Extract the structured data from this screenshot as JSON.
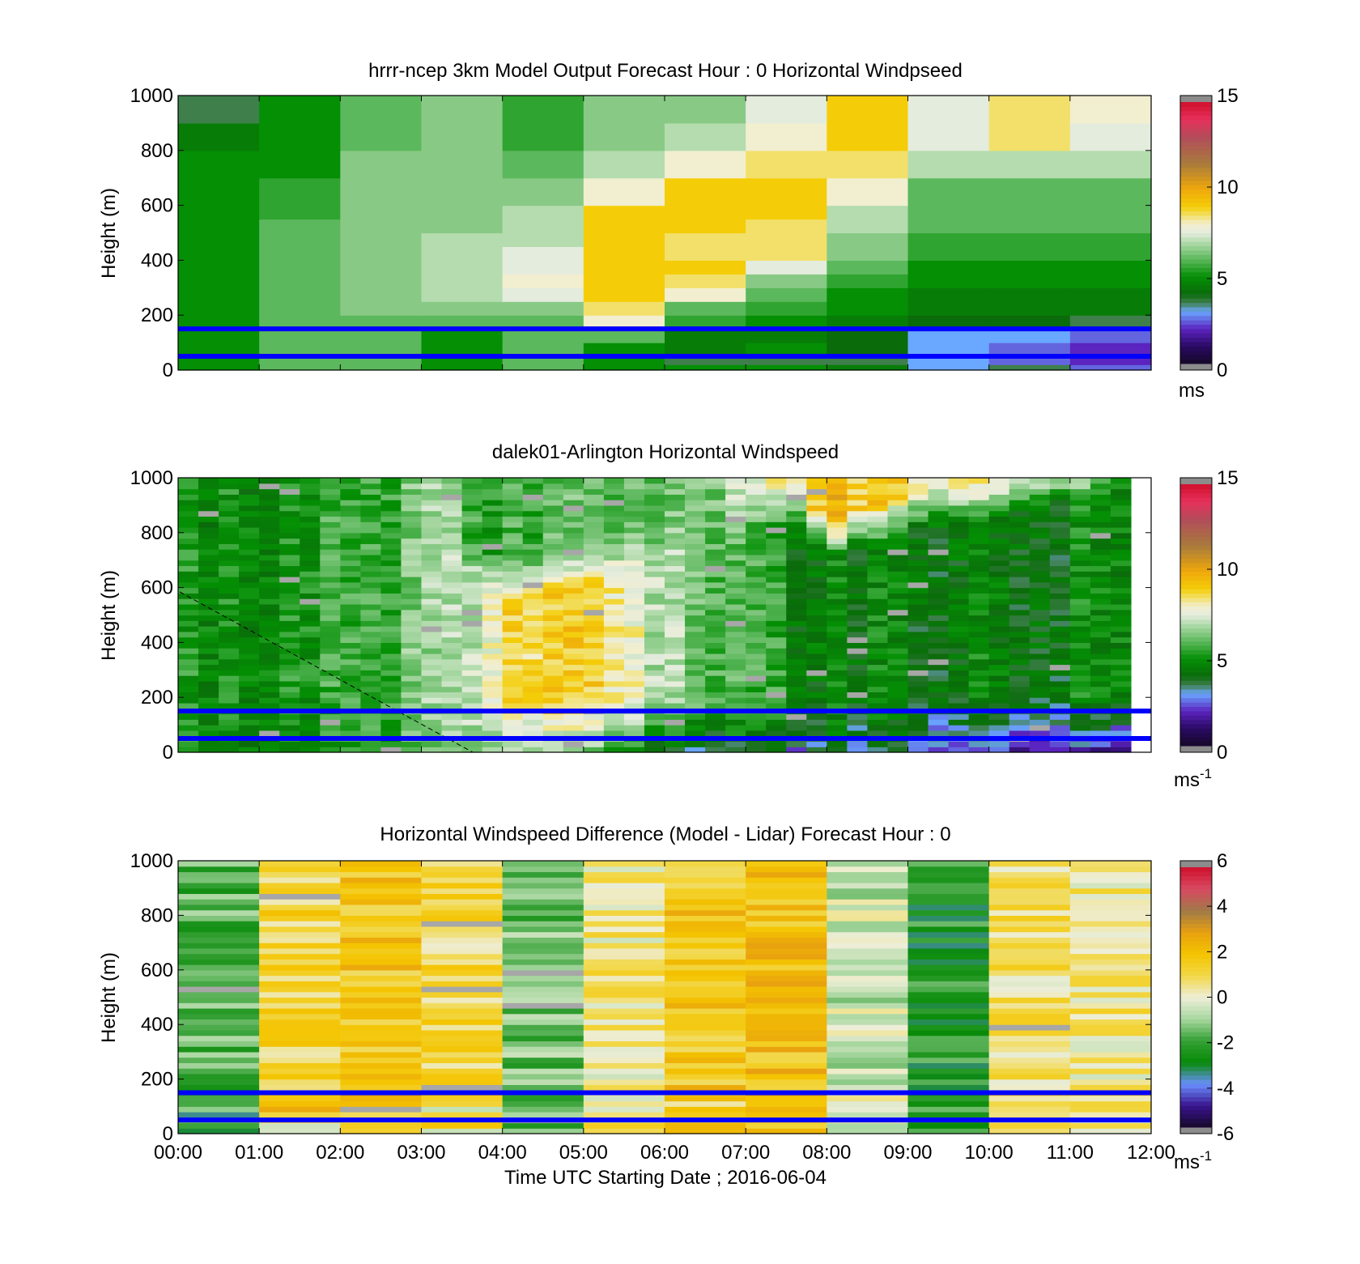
{
  "figure": {
    "background": "#ffffff",
    "reference_line_color": "#0000ff",
    "xlabel": "Time UTC  Starting Date ; 2016-06-04",
    "xticklabels": [
      "00:00",
      "01:00",
      "02:00",
      "03:00",
      "04:00",
      "05:00",
      "06:00",
      "07:00",
      "08:00",
      "09:00",
      "10:00",
      "11:00",
      "12:00"
    ]
  },
  "chart_data": [
    {
      "type": "heatmap",
      "id": "model",
      "title": "hrrr-ncep 3km Model Output   Forecast Hour : 0 Horizontal Windpseed",
      "ylabel": "Height (m)",
      "ylim": [
        0,
        1000
      ],
      "yticks": [
        0,
        200,
        400,
        600,
        800,
        1000
      ],
      "xlim_hours": [
        0,
        12
      ],
      "colorbar": {
        "min": 0,
        "max": 15,
        "ticks": [
          0,
          5,
          10,
          15
        ],
        "unit": "ms",
        "unit_sup": ""
      },
      "reference_heights_m": [
        150,
        50
      ],
      "grid_lines": false,
      "time_hours": [
        0,
        1,
        2,
        3,
        4,
        5,
        6,
        7,
        8,
        9,
        10,
        11
      ],
      "height_bin_tops_m": [
        20,
        60,
        100,
        150,
        200,
        250,
        300,
        350,
        400,
        450,
        500,
        550,
        600,
        700,
        800,
        900,
        1000
      ],
      "values": [
        [
          5,
          6,
          6,
          5,
          6,
          5,
          5,
          5,
          4.5,
          3,
          3.5,
          2.5
        ],
        [
          5,
          6,
          6,
          5,
          6,
          5,
          3.5,
          3.5,
          3.5,
          3,
          2.5,
          2
        ],
        [
          5,
          6,
          6,
          5,
          6,
          5,
          4.5,
          5,
          4,
          3,
          2.5,
          2
        ],
        [
          5,
          6,
          6,
          5,
          6,
          6,
          4.5,
          4.5,
          4,
          3,
          3,
          2.5
        ],
        [
          5,
          6,
          6,
          6,
          6,
          8,
          5.5,
          5,
          4.5,
          4,
          4,
          3.5
        ],
        [
          5,
          6,
          6.5,
          6.5,
          6.5,
          8.5,
          6,
          5.5,
          5,
          4.5,
          4.5,
          4.5
        ],
        [
          5,
          6,
          6.5,
          7,
          7.5,
          9,
          8,
          6,
          5,
          4.5,
          4.5,
          4.5
        ],
        [
          5,
          6,
          6.5,
          7,
          8,
          9,
          8.5,
          6.5,
          5.5,
          5,
          5,
          5
        ],
        [
          5,
          6,
          6.5,
          7,
          7.5,
          9,
          9,
          7.5,
          6,
          5,
          5,
          5
        ],
        [
          5,
          6,
          6.5,
          7,
          7.5,
          9,
          8.5,
          8.5,
          6.5,
          5.5,
          5.5,
          5.5
        ],
        [
          5,
          6,
          6.5,
          7,
          7,
          9,
          8.5,
          8.5,
          6.5,
          5.5,
          5.5,
          5.5
        ],
        [
          5,
          6,
          6.5,
          6.5,
          7,
          9,
          9,
          8.5,
          7,
          6,
          6,
          6
        ],
        [
          5,
          5.5,
          6.5,
          6.5,
          7,
          9,
          9,
          9,
          7,
          6,
          6,
          6
        ],
        [
          5,
          5.5,
          6.5,
          6.5,
          6.5,
          8,
          9,
          9,
          8,
          6,
          6,
          6
        ],
        [
          5,
          5,
          6.5,
          6.5,
          6,
          7,
          8,
          8.5,
          8.5,
          7,
          7,
          7
        ],
        [
          4.5,
          5,
          6,
          6.5,
          5.5,
          6.5,
          7,
          8,
          9,
          7.5,
          8.5,
          7.5
        ],
        [
          3.5,
          5,
          6,
          6.5,
          5.5,
          6.5,
          6.5,
          7.5,
          9,
          7.5,
          8.5,
          8
        ]
      ]
    },
    {
      "type": "heatmap",
      "id": "lidar",
      "title": "dalek01-Arlington  Horizontal Windspeed",
      "ylabel": "Height (m)",
      "ylim": [
        0,
        1000
      ],
      "yticks": [
        0,
        200,
        400,
        600,
        800,
        1000
      ],
      "xlim_hours": [
        0,
        12
      ],
      "colorbar": {
        "min": 0,
        "max": 15,
        "ticks": [
          0,
          5,
          10,
          15
        ],
        "unit": "ms",
        "unit_sup": "-1"
      },
      "reference_heights_m": [
        150,
        50
      ],
      "grid_lines": false,
      "time_step_hours": 0.25,
      "data_end_hours": 11.75,
      "height_step_m": 20,
      "profile_keys": {
        "hours": [
          0,
          1,
          2,
          3,
          3.5,
          4,
          5,
          6,
          7,
          7.5,
          8,
          9,
          10,
          11,
          11.75
        ],
        "surface": [
          5,
          5,
          5,
          5.5,
          6.5,
          7,
          6,
          4,
          3,
          3,
          3.5,
          3,
          2,
          1.5,
          1
        ],
        "low": [
          5,
          5,
          5.5,
          6,
          7,
          8.5,
          9,
          7,
          5.5,
          5,
          4.5,
          4.5,
          4.5,
          4.5,
          5
        ],
        "top": [
          5,
          5.5,
          6,
          6.5,
          6,
          5.5,
          6,
          6,
          7,
          8.5,
          9.5,
          8.5,
          8.5,
          8.5,
          8
        ],
        "transition_height_m": [
          1500,
          1500,
          1500,
          1500,
          650,
          550,
          600,
          700,
          800,
          850,
          700,
          800,
          850,
          900,
          950
        ]
      },
      "noise_amplitude": 1.2
    },
    {
      "type": "heatmap",
      "id": "difference",
      "title": "Horizontal Windspeed Difference (Model - Lidar) Forecast Hour : 0",
      "ylabel": "Height (m)",
      "xlabel": "Time UTC  Starting Date ; 2016-06-04",
      "ylim": [
        0,
        1000
      ],
      "yticks": [
        0,
        200,
        400,
        600,
        800,
        1000
      ],
      "xlim_hours": [
        0,
        12
      ],
      "colorbar": {
        "min": -6,
        "max": 6,
        "ticks": [
          -6,
          -4,
          -2,
          0,
          2,
          4,
          6
        ],
        "unit": "ms",
        "unit_sup": "-1"
      },
      "reference_heights_m": [
        150,
        50
      ],
      "grid_lines": false,
      "time_hours": [
        0,
        1,
        2,
        3,
        4,
        5,
        6,
        7,
        8,
        9,
        10,
        11
      ],
      "height_step_m": 20,
      "base_difference": [
        -1.8,
        1.2,
        1.8,
        1.0,
        -1.5,
        0.5,
        1.8,
        2.0,
        -0.5,
        -2.5,
        0.8,
        0.5
      ],
      "noise_amplitude": 1.0
    }
  ]
}
